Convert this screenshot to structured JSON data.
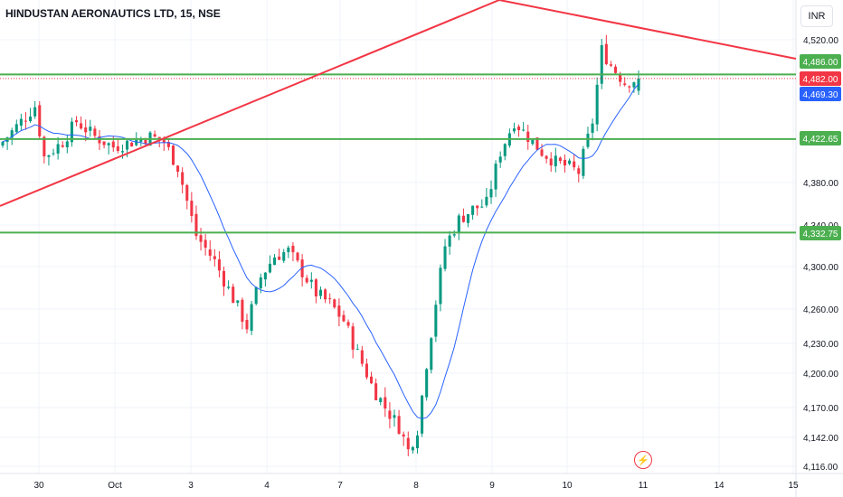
{
  "header": {
    "title": "HINDUSTAN AERONAUTICS LTD, 15, NSE",
    "currency": "INR"
  },
  "colors": {
    "up": "#089981",
    "down": "#f23645",
    "ma": "#2962ff",
    "trendline": "#f23645",
    "level": "#4caf50",
    "grid": "#f0f3fa"
  },
  "icons": {
    "flash": "lightning-icon"
  },
  "chart_data": {
    "type": "candlestick",
    "title": "HINDUSTAN AERONAUTICS LTD, 15, NSE",
    "ylim": [
      4110,
      4550
    ],
    "y_ticks": [
      4520,
      4380,
      4340,
      4300,
      4260,
      4230,
      4200,
      4170,
      4142,
      4116
    ],
    "y_tick_labels": [
      "4,520.00",
      "4,380.00",
      "4,340.00",
      "4,300.00",
      "4,260.00",
      "4,230.00",
      "4,200.00",
      "4,170.00",
      "4,142.00",
      "4,116.00"
    ],
    "x_labels": [
      "30",
      "Oct",
      "3",
      "4",
      "7",
      "8",
      "9",
      "10",
      "11",
      "14",
      "15"
    ],
    "horizontal_levels": [
      4486.0,
      4422.65,
      4332.75
    ],
    "price_labels": [
      {
        "value": 4486.0,
        "text": "4,486.00",
        "color": "#4caf50"
      },
      {
        "value": 4482.0,
        "text": "4,482.00",
        "color": "#f23645"
      },
      {
        "value": 4469.3,
        "text": "4,469.30",
        "color": "#2962ff"
      },
      {
        "value": 4422.65,
        "text": "4,422.65",
        "color": "#4caf50"
      },
      {
        "value": 4332.75,
        "text": "4,332.75",
        "color": "#4caf50"
      }
    ],
    "last_price": 4482.0,
    "moving_average_last": 4469.3,
    "trendlines": [
      {
        "from": {
          "x": "before 30",
          "y": 4358
        },
        "to": {
          "x": "9",
          "y": 4550
        }
      },
      {
        "from": {
          "x": "9",
          "y": 4550
        },
        "to": {
          "x": "15",
          "y": 4490
        }
      }
    ],
    "close_path": [
      [
        0,
        4420
      ],
      [
        4,
        4440
      ],
      [
        7,
        4455
      ],
      [
        9,
        4405
      ],
      [
        13,
        4420
      ],
      [
        16,
        4440
      ],
      [
        20,
        4425
      ],
      [
        24,
        4415
      ],
      [
        28,
        4420
      ],
      [
        32,
        4425
      ],
      [
        35,
        4420
      ],
      [
        38,
        4395
      ],
      [
        42,
        4330
      ],
      [
        46,
        4305
      ],
      [
        50,
        4270
      ],
      [
        53,
        4245
      ],
      [
        56,
        4290
      ],
      [
        59,
        4310
      ],
      [
        62,
        4315
      ],
      [
        65,
        4295
      ],
      [
        68,
        4275
      ],
      [
        71,
        4265
      ],
      [
        74,
        4250
      ],
      [
        77,
        4220
      ],
      [
        80,
        4190
      ],
      [
        83,
        4170
      ],
      [
        86,
        4152
      ],
      [
        88,
        4130
      ],
      [
        90,
        4150
      ],
      [
        93,
        4240
      ],
      [
        96,
        4320
      ],
      [
        99,
        4345
      ],
      [
        102,
        4355
      ],
      [
        105,
        4360
      ],
      [
        108,
        4410
      ],
      [
        111,
        4440
      ],
      [
        114,
        4425
      ],
      [
        117,
        4410
      ],
      [
        120,
        4400
      ],
      [
        123,
        4395
      ],
      [
        125,
        4390
      ],
      [
        128,
        4440
      ],
      [
        130,
        4510
      ],
      [
        132,
        4495
      ],
      [
        135,
        4478
      ],
      [
        138,
        4482
      ]
    ]
  }
}
